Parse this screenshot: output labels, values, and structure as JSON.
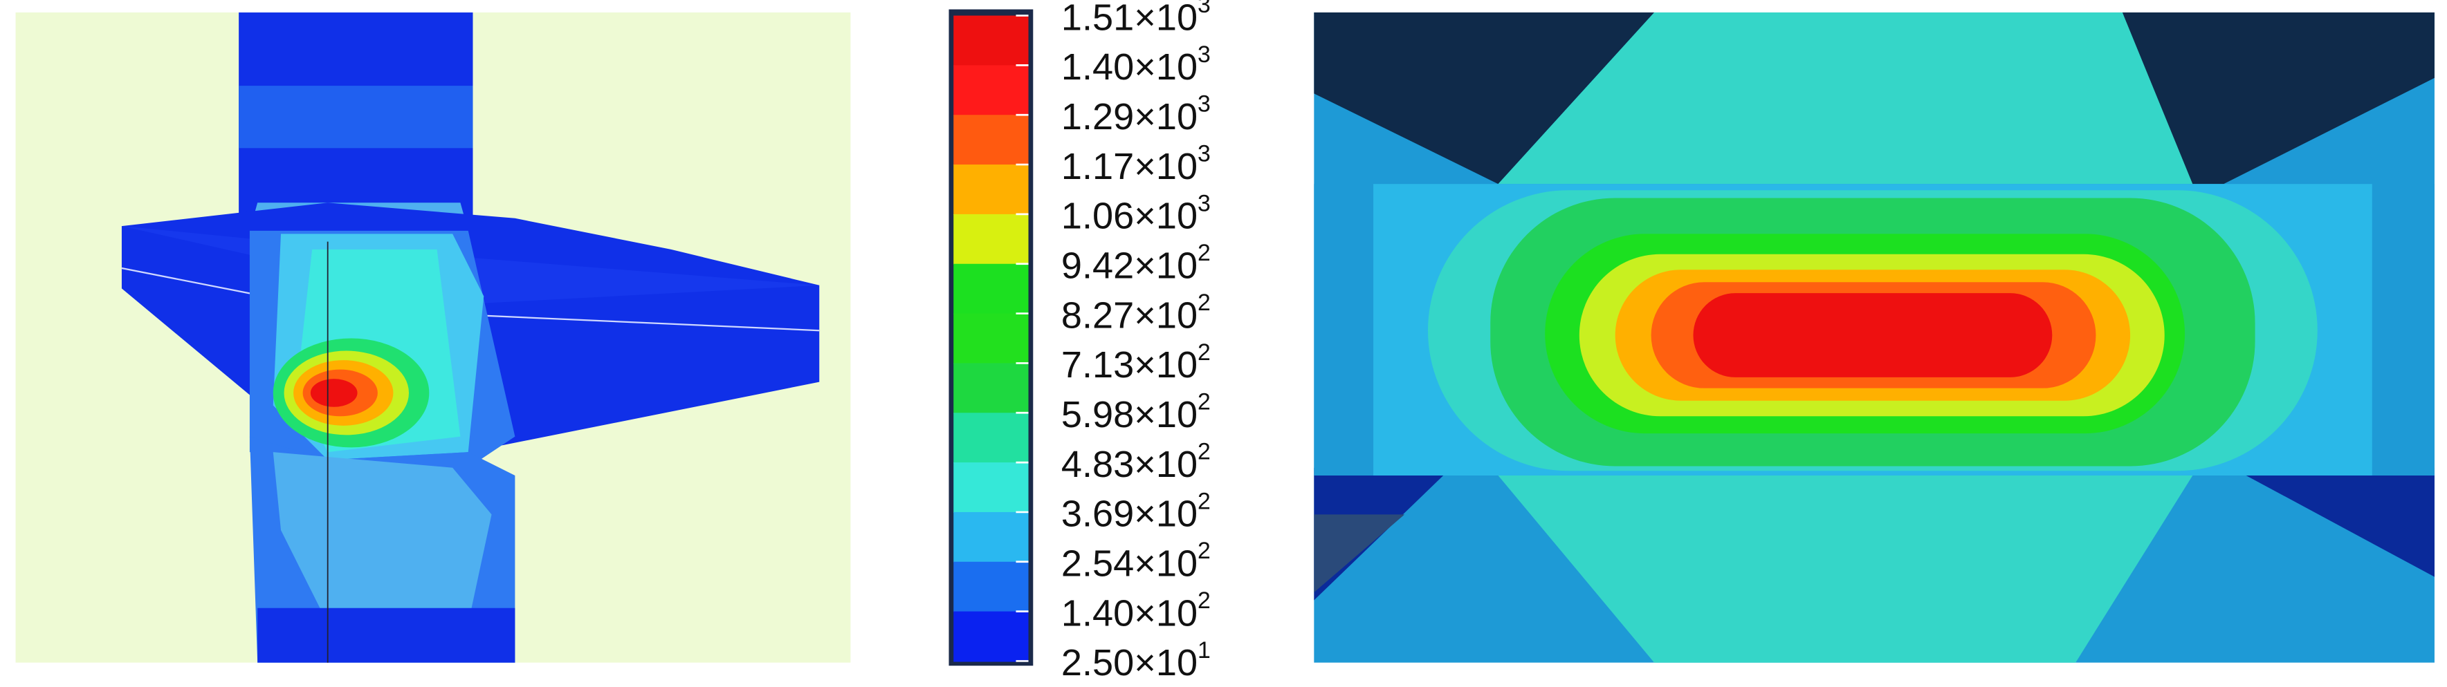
{
  "colorbar": {
    "labels": [
      {
        "mantissa": "1.51×10",
        "exponent": "3"
      },
      {
        "mantissa": "1.40×10",
        "exponent": "3"
      },
      {
        "mantissa": "1.29×10",
        "exponent": "3"
      },
      {
        "mantissa": "1.17×10",
        "exponent": "3"
      },
      {
        "mantissa": "1.06×10",
        "exponent": "3"
      },
      {
        "mantissa": "9.42×10",
        "exponent": "2"
      },
      {
        "mantissa": "8.27×10",
        "exponent": "2"
      },
      {
        "mantissa": "7.13×10",
        "exponent": "2"
      },
      {
        "mantissa": "5.98×10",
        "exponent": "2"
      },
      {
        "mantissa": "4.83×10",
        "exponent": "2"
      },
      {
        "mantissa": "3.69×10",
        "exponent": "2"
      },
      {
        "mantissa": "2.54×10",
        "exponent": "2"
      },
      {
        "mantissa": "1.40×10",
        "exponent": "2"
      },
      {
        "mantissa": "2.50×10",
        "exponent": "1"
      }
    ]
  }
}
